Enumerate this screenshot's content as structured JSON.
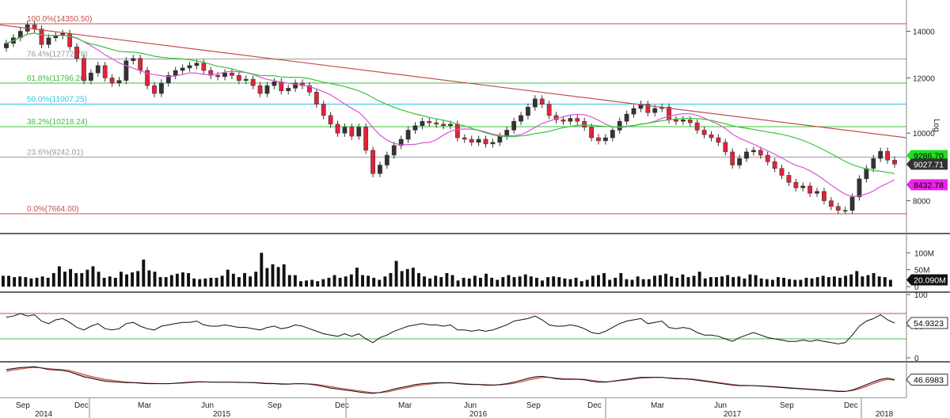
{
  "chart_data": [
    {
      "type": "candlestick",
      "panel": "price",
      "ylabel": "Log",
      "y_scale": "log",
      "ylim": [
        7350,
        15200
      ],
      "y_ticks": [
        "8000",
        "10000",
        "12000",
        "14000"
      ],
      "x_ticks": [
        "Sep",
        "Dec",
        "Mar",
        "Jun",
        "Sep",
        "Dec",
        "Mar",
        "Jun",
        "Sep",
        "Dec",
        "Mar",
        "Jun",
        "Sep",
        "Dec"
      ],
      "x_years": [
        "2014",
        "2015",
        "2016",
        "2017",
        "2018"
      ],
      "fibonacci": [
        {
          "label": "100.0%(14350.50)",
          "value": 14350.5,
          "color": "#c0504d"
        },
        {
          "label": "76.4%(12772.78)",
          "value": 12772.78,
          "color": "#9a9a9a"
        },
        {
          "label": "61.8%(11796.26)",
          "value": 11796.26,
          "color": "#3fbf3f"
        },
        {
          "label": "50.0%(11007.25)",
          "value": 11007.25,
          "color": "#2fc8e0"
        },
        {
          "label": "38.2%(10218.24)",
          "value": 10218.24,
          "color": "#3fbf3f"
        },
        {
          "label": "23.6%(9242.01)",
          "value": 9242.01,
          "color": "#9a9a9a"
        },
        {
          "label": "0.0%(7664.00)",
          "value": 7664.0,
          "color": "#c0504d"
        }
      ],
      "trendline": {
        "start": 14300,
        "end": 9850,
        "color": "#c0504d"
      },
      "closes": [
        13450,
        13700,
        14000,
        14300,
        14100,
        13400,
        13700,
        13800,
        13900,
        13300,
        12800,
        11900,
        12200,
        12500,
        12000,
        11800,
        11900,
        12700,
        12800,
        12300,
        11700,
        11400,
        11800,
        12100,
        12300,
        12400,
        12500,
        12600,
        12300,
        12100,
        12050,
        12200,
        12100,
        11900,
        11950,
        11700,
        11400,
        11700,
        11850,
        11500,
        11600,
        11800,
        11700,
        11450,
        11000,
        10600,
        10300,
        10000,
        10200,
        9900,
        10200,
        9450,
        8750,
        9000,
        9300,
        9600,
        9800,
        10100,
        10250,
        10400,
        10350,
        10300,
        10250,
        10300,
        9850,
        9800,
        9700,
        9800,
        9650,
        9700,
        9900,
        10100,
        10400,
        10600,
        10900,
        11200,
        11000,
        10600,
        10450,
        10400,
        10500,
        10400,
        10200,
        9850,
        9750,
        9850,
        10100,
        10400,
        10650,
        10850,
        11000,
        10700,
        10850,
        10900,
        10450,
        10400,
        10450,
        10350,
        10100,
        9950,
        9850,
        9700,
        9400,
        9000,
        9200,
        9400,
        9450,
        9300,
        9100,
        8900,
        8700,
        8500,
        8350,
        8400,
        8200,
        8250,
        8000,
        7850,
        7750,
        7750,
        8100,
        8600,
        8900,
        9200,
        9420,
        9150,
        9027.71
      ],
      "ma_fast": {
        "color": "#d657d6",
        "last": 8432.78
      },
      "ma_slow": {
        "color": "#3ac43a",
        "last": 9286.7
      },
      "last_price": 9027.71,
      "badges": [
        {
          "text": "9286.70",
          "bg": "#22dd22",
          "fg": "#000000"
        },
        {
          "text": "9027.71",
          "bg": "#333333",
          "fg": "#ffffff"
        },
        {
          "text": "8432.78",
          "bg": "#ee22ee",
          "fg": "#000000"
        }
      ]
    },
    {
      "type": "bar",
      "panel": "volume",
      "y_ticks": [
        "0",
        "50M",
        "100M"
      ],
      "ylim": [
        0,
        150
      ],
      "values_millions": [
        32,
        32,
        28,
        30,
        28,
        24,
        26,
        30,
        26,
        40,
        60,
        44,
        52,
        40,
        40,
        50,
        60,
        44,
        26,
        30,
        26,
        44,
        36,
        42,
        46,
        80,
        48,
        44,
        28,
        28,
        34,
        38,
        42,
        40,
        24,
        22,
        24,
        26,
        26,
        32,
        50,
        38,
        28,
        40,
        30,
        44,
        100,
        55,
        66,
        58,
        66,
        34,
        34,
        16,
        18,
        20,
        16,
        22,
        26,
        34,
        26,
        30,
        36,
        56,
        34,
        32,
        26,
        20,
        30,
        40,
        76,
        46,
        52,
        56,
        40,
        30,
        24,
        32,
        28,
        40,
        34,
        18,
        26,
        24,
        32,
        26,
        38,
        26,
        20,
        28,
        34,
        28,
        30,
        36,
        30,
        26,
        18,
        28,
        30,
        28,
        24,
        22,
        26,
        16,
        20,
        32,
        34,
        40,
        20,
        26,
        40,
        22,
        20,
        30,
        22,
        22,
        32,
        34,
        38,
        30,
        26,
        36,
        28,
        32,
        44,
        24,
        28,
        28,
        30,
        34,
        28,
        30,
        24,
        36,
        34,
        24,
        22,
        20,
        28,
        26,
        22,
        20,
        20,
        26,
        24,
        28,
        32,
        28,
        30,
        26,
        32,
        36,
        46,
        30,
        34,
        40,
        30,
        28,
        20
      ],
      "last_label": "20.090M",
      "bar_color": "#111111"
    },
    {
      "type": "line",
      "panel": "rsi",
      "y_ticks": [
        "0",
        "50",
        "100"
      ],
      "ylim": [
        0,
        100
      ],
      "upper_band": 70,
      "lower_band": 30,
      "values": [
        64,
        66,
        70,
        66,
        68,
        58,
        54,
        60,
        62,
        56,
        48,
        44,
        50,
        54,
        46,
        44,
        46,
        54,
        56,
        50,
        46,
        44,
        50,
        52,
        54,
        56,
        56,
        58,
        52,
        50,
        50,
        52,
        50,
        48,
        48,
        46,
        44,
        48,
        50,
        46,
        48,
        52,
        50,
        46,
        42,
        38,
        36,
        34,
        38,
        34,
        38,
        30,
        24,
        32,
        36,
        42,
        46,
        50,
        52,
        54,
        52,
        52,
        50,
        52,
        44,
        44,
        42,
        44,
        42,
        44,
        48,
        52,
        58,
        60,
        62,
        66,
        60,
        52,
        50,
        50,
        52,
        50,
        46,
        40,
        38,
        42,
        48,
        54,
        58,
        60,
        62,
        54,
        56,
        58,
        48,
        46,
        48,
        46,
        40,
        36,
        36,
        34,
        30,
        26,
        32,
        36,
        40,
        36,
        32,
        30,
        28,
        26,
        26,
        28,
        26,
        28,
        26,
        24,
        22,
        24,
        36,
        50,
        58,
        62,
        68,
        60,
        54.9323
      ],
      "last_label": "54.9323",
      "line_color": "#111111",
      "band_colors": [
        "#c0504d",
        "#3fbf3f"
      ]
    },
    {
      "type": "area",
      "panel": "oscillator",
      "values": [
        88,
        92,
        96,
        98,
        100,
        94,
        88,
        86,
        84,
        78,
        68,
        58,
        52,
        46,
        40,
        38,
        36,
        34,
        34,
        32,
        30,
        30,
        30,
        30,
        32,
        34,
        36,
        38,
        38,
        36,
        36,
        36,
        36,
        35,
        35,
        34,
        32,
        30,
        30,
        28,
        28,
        30,
        30,
        28,
        24,
        18,
        12,
        8,
        4,
        0,
        -4,
        -8,
        -10,
        -6,
        0,
        8,
        14,
        20,
        26,
        30,
        32,
        34,
        34,
        34,
        30,
        28,
        26,
        26,
        24,
        24,
        26,
        30,
        36,
        44,
        52,
        58,
        60,
        56,
        50,
        48,
        48,
        48,
        46,
        40,
        36,
        36,
        40,
        44,
        48,
        52,
        56,
        56,
        56,
        56,
        52,
        50,
        50,
        48,
        44,
        40,
        36,
        32,
        28,
        24,
        22,
        22,
        22,
        20,
        18,
        16,
        14,
        12,
        10,
        8,
        6,
        4,
        2,
        0,
        -2,
        -2,
        4,
        14,
        26,
        38,
        48,
        52,
        46.6983
      ],
      "signal": [
        80,
        86,
        90,
        94,
        96,
        95,
        92,
        90,
        88,
        84,
        76,
        68,
        60,
        54,
        48,
        44,
        40,
        37,
        35,
        34,
        32,
        31,
        30,
        30,
        31,
        32,
        34,
        36,
        37,
        37,
        36,
        36,
        36,
        36,
        35,
        35,
        34,
        32,
        31,
        30,
        29,
        29,
        29,
        29,
        27,
        23,
        18,
        13,
        9,
        5,
        1,
        -3,
        -7,
        -7,
        -4,
        2,
        8,
        14,
        20,
        25,
        28,
        31,
        33,
        33,
        32,
        30,
        28,
        27,
        26,
        25,
        25,
        27,
        31,
        37,
        44,
        50,
        55,
        56,
        53,
        51,
        50,
        49,
        48,
        44,
        40,
        38,
        39,
        42,
        45,
        49,
        52,
        54,
        55,
        55,
        54,
        52,
        51,
        50,
        47,
        43,
        39,
        35,
        31,
        27,
        24,
        23,
        22,
        21,
        20,
        18,
        16,
        14,
        12,
        10,
        8,
        6,
        4,
        2,
        0,
        -1,
        1,
        8,
        18,
        30,
        40,
        47,
        44
      ],
      "last_label": "46.6983",
      "line_color": "#111111",
      "fill_color": "#e46a6a"
    }
  ]
}
